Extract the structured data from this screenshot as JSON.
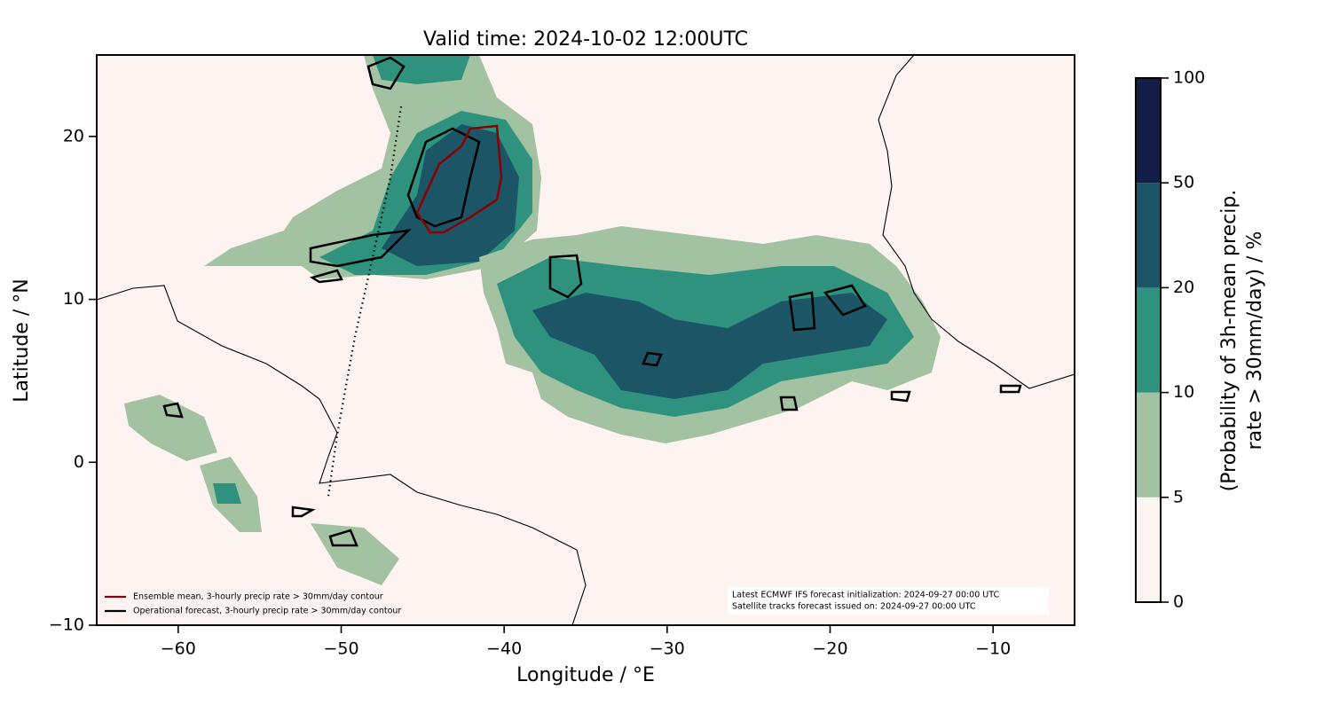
{
  "map": {
    "title": "Valid time: 2024-10-02 12:00UTC",
    "xlabel": "Longitude / °E",
    "ylabel": "Latitude / °N",
    "xlim": [
      -65,
      -5
    ],
    "ylim": [
      -10,
      25
    ],
    "xticks": [
      {
        "value": -60,
        "label": "−60"
      },
      {
        "value": -50,
        "label": "−50"
      },
      {
        "value": -40,
        "label": "−40"
      },
      {
        "value": -30,
        "label": "−30"
      },
      {
        "value": -20,
        "label": "−20"
      },
      {
        "value": -10,
        "label": "−10"
      }
    ],
    "yticks": [
      {
        "value": -10,
        "label": "−10"
      },
      0,
      10,
      20
    ],
    "legend": [
      {
        "label": "Ensemble mean, 3-hourly precip rate > 30mm/day contour",
        "color": "#8b0000"
      },
      {
        "label": "Operational forecast, 3-hourly precip rate > 30mm/day contour",
        "color": "#000000"
      }
    ],
    "annotation": [
      "Latest ECMWF IFS forecast initialization: 2024-09-27 00:00 UTC",
      "Satellite tracks forecast issued on: 2024-09-27 00:00 UTC"
    ],
    "colorbar": {
      "label": [
        "(Probability of 3h-mean precip.",
        "rate > 30mm/day) / %"
      ],
      "ticks": [
        0,
        5,
        10,
        20,
        50,
        100
      ],
      "colors": [
        "#fdf4f2",
        "#a3c2a2",
        "#2e927e",
        "#1b5566",
        "#141c48"
      ]
    }
  }
}
